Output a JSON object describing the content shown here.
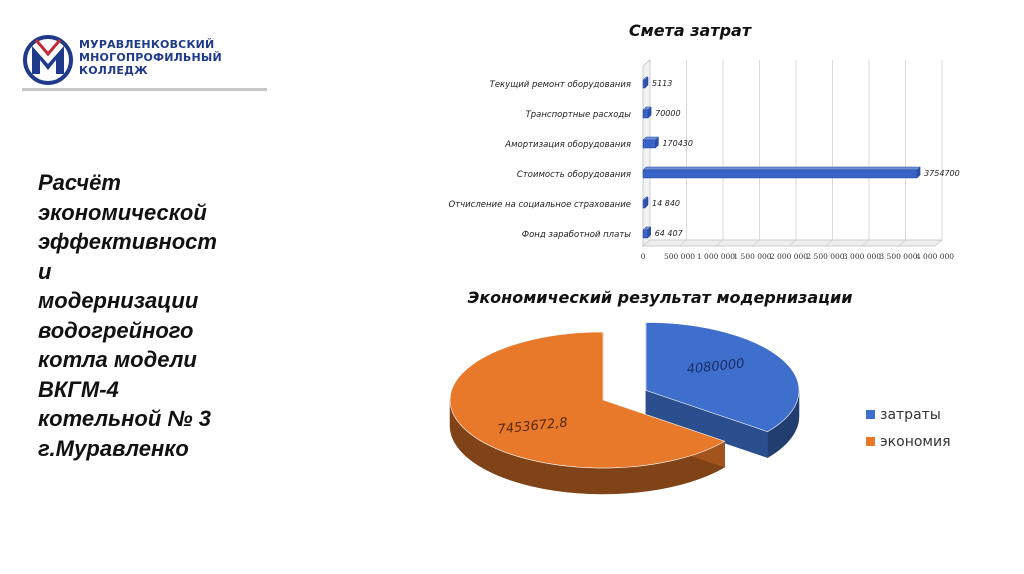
{
  "logo": {
    "lines": [
      "МУРАВЛЕНКОВСКИЙ",
      "МНОГОПРОФИЛЬНЫЙ",
      "КОЛЛЕДЖ"
    ],
    "colors": {
      "primary": "#1f3a8a",
      "accent": "#c62839"
    }
  },
  "left_title": {
    "lines": [
      "Расчёт",
      "экономической",
      "эффективност",
      "и",
      "модернизации",
      "водогрейного",
      "котла модели",
      "ВКГМ-4",
      "котельной  № 3",
      "г.Муравленко"
    ]
  },
  "chart_data": [
    {
      "type": "bar",
      "orientation": "horizontal",
      "title": "Смета затрат",
      "categories": [
        "Текущий ремонт оборудования",
        "Транспортные расходы",
        "Амортизация оборудования",
        "Стоимость оборудования",
        "Отчисление на социальное страхование",
        "Фонд заработной платы"
      ],
      "values": [
        5113,
        70000,
        170430,
        3754700,
        14840,
        64407
      ],
      "data_labels": [
        "5113",
        "70000",
        "170430",
        "3754700",
        "14 840",
        "64 407"
      ],
      "xlim": [
        0,
        4000000
      ],
      "x_ticks": [
        "0",
        "500 000",
        "1 000 000",
        "1 500 000",
        "2 000 000",
        "2 500 000",
        "3 000 000",
        "3 500 000",
        "4 000 000"
      ],
      "grid": true,
      "color": "#3a63c8"
    },
    {
      "type": "pie",
      "title": "Экономический результат модернизации",
      "slices": [
        {
          "name": "затраты",
          "value": 4080000,
          "label": "4080000",
          "color": "#3e6fcc"
        },
        {
          "name": "экономия",
          "value": 7453672.8,
          "label": "7453672,8",
          "color": "#e8782a"
        }
      ],
      "legend_position": "right"
    }
  ]
}
